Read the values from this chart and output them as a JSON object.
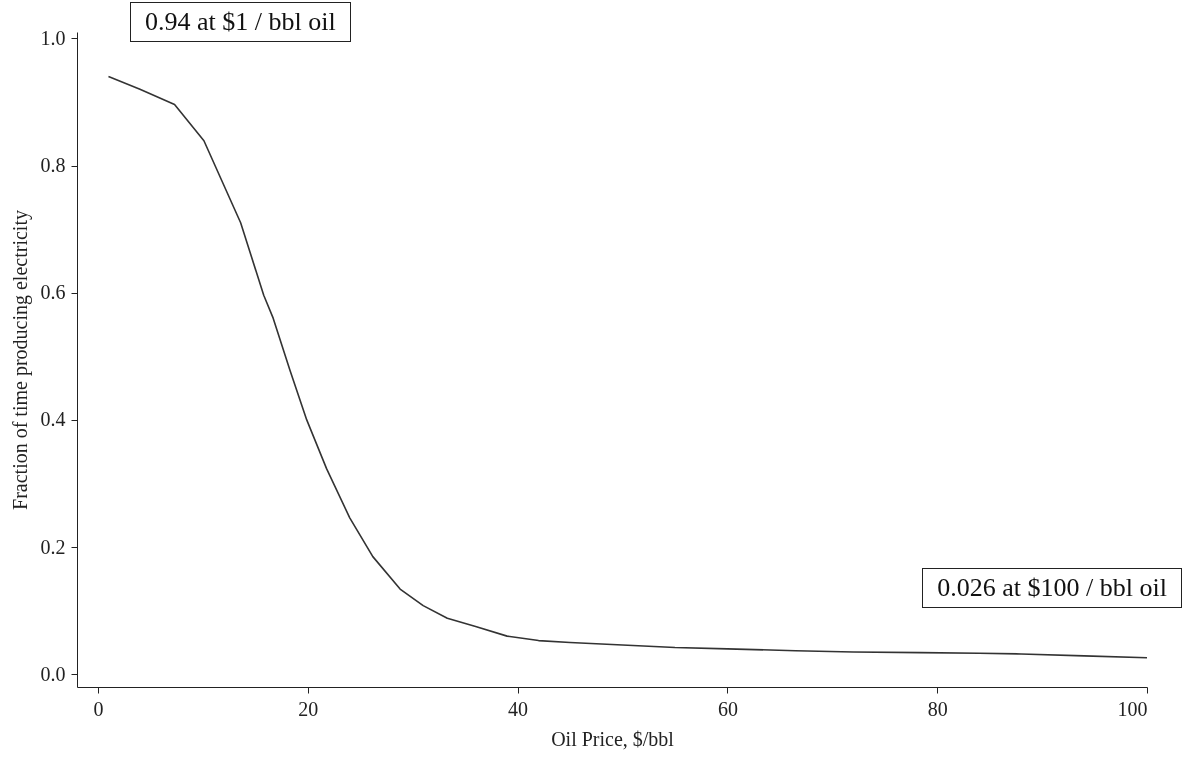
{
  "chart_data": {
    "type": "line",
    "xlabel": "Oil Price, $/bbl",
    "ylabel": "Fraction of time producing electricity",
    "annotations": [
      "0.94 at $1 / bbl oil",
      "0.026 at $100 / bbl oil"
    ],
    "xlim": [
      -2,
      100
    ],
    "xticks": [
      0,
      20,
      40,
      60,
      80,
      100
    ],
    "ylim": [
      -0.02,
      1.01
    ],
    "yticks": [
      {
        "value": 0,
        "label": "0.0"
      },
      0.2,
      0.4,
      0.6,
      0.8,
      {
        "value": 1,
        "label": "1.0"
      }
    ],
    "grid": false,
    "marker": "none",
    "line_style": "solid",
    "series": [
      {
        "color": "#333333",
        "x": [
          1,
          4,
          7.3,
          10.1,
          11.7,
          13.6,
          15.8,
          16.7,
          18.3,
          19.9,
          21.8,
          24,
          26.2,
          28.8,
          31,
          33.3,
          36,
          39,
          42,
          45,
          50,
          55,
          60,
          66.5,
          72,
          78.4,
          84,
          88,
          94,
          100
        ],
        "values": [
          0.94,
          0.92,
          0.896,
          0.839,
          0.78,
          0.71,
          0.596,
          0.56,
          0.478,
          0.4,
          0.323,
          0.246,
          0.185,
          0.134,
          0.108,
          0.088,
          0.075,
          0.06,
          0.053,
          0.05,
          0.046,
          0.042,
          0.04,
          0.037,
          0.035,
          0.034,
          0.033,
          0.032,
          0.029,
          0.026
        ]
      }
    ]
  }
}
